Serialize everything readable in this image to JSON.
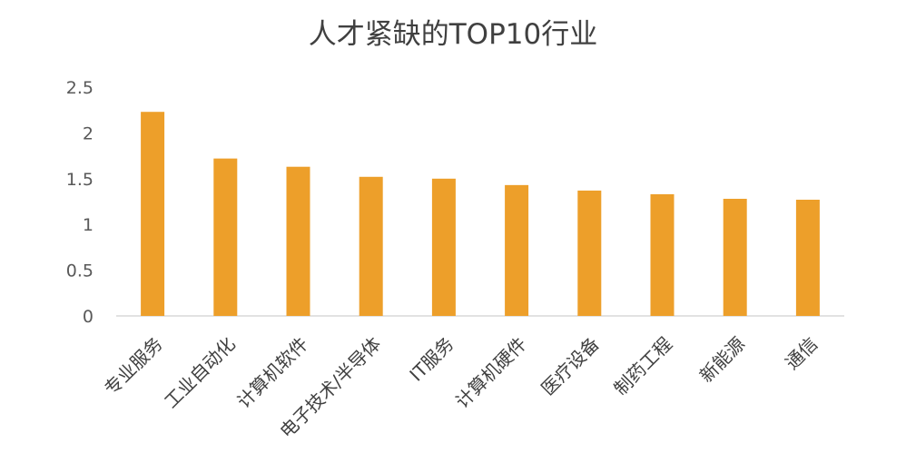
{
  "chart_data": {
    "type": "bar",
    "title": "人才紧缺的TOP10行业",
    "xlabel": "",
    "ylabel": "",
    "categories": [
      "专业服务",
      "工业自动化",
      "计算机软件",
      "电子技术/半导体",
      "IT服务",
      "计算机硬件",
      "医疗设备",
      "制药工程",
      "新能源",
      "通信"
    ],
    "values": [
      2.23,
      1.72,
      1.63,
      1.52,
      1.5,
      1.43,
      1.37,
      1.33,
      1.28,
      1.27
    ],
    "ylim": [
      0,
      2.5
    ],
    "yticks": [
      "0",
      "0.5",
      "1",
      "1.5",
      "2",
      "2.5"
    ],
    "grid": false,
    "legend": "none",
    "bar_color": "#ED9F2A",
    "axis_color": "#D9D9D9"
  }
}
